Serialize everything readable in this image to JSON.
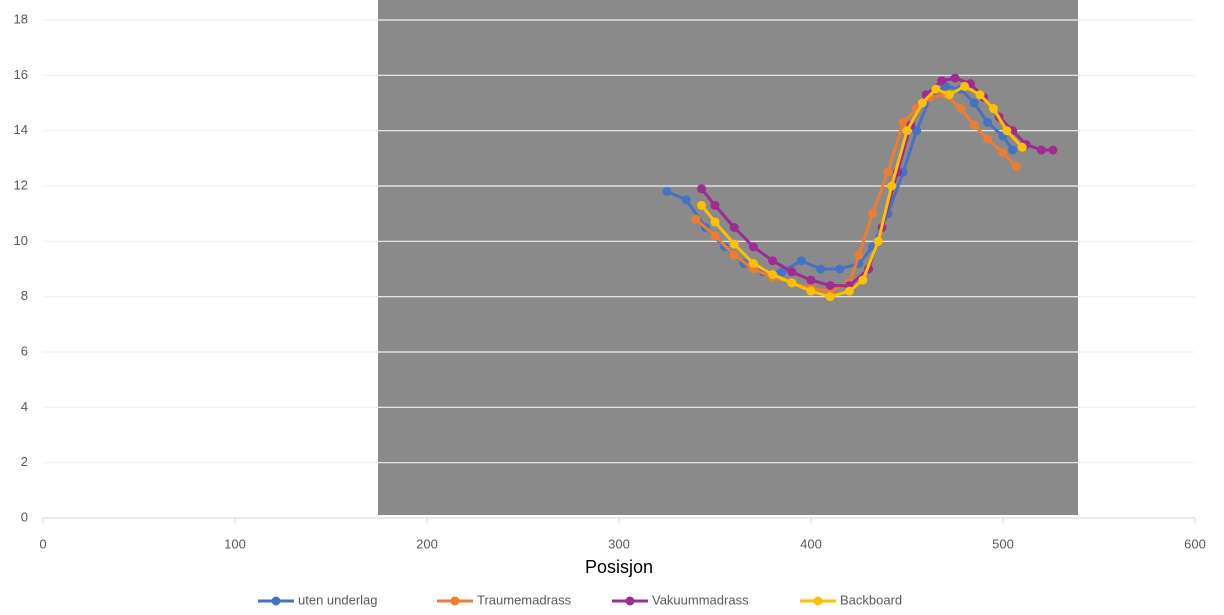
{
  "chart_data": {
    "type": "line",
    "xlabel": "Posisjon",
    "xlim": [
      0,
      600
    ],
    "xticks": [
      0,
      100,
      200,
      300,
      400,
      500,
      600
    ],
    "ylim": [
      0,
      18
    ],
    "yticks": [
      0,
      2,
      4,
      6,
      8,
      10,
      12,
      14,
      16,
      18
    ],
    "grid": true,
    "legend": "bottom",
    "series": [
      {
        "name": "uten underlag",
        "color": "#4472c4",
        "x": [
          325,
          335,
          345,
          355,
          365,
          375,
          385,
          395,
          405,
          415,
          425,
          432,
          440,
          448,
          455,
          462,
          470,
          478,
          485,
          492,
          500,
          505
        ],
        "values": [
          11.8,
          11.5,
          10.5,
          9.8,
          9.2,
          8.9,
          8.9,
          9.3,
          9.0,
          9.0,
          9.2,
          9.8,
          11.0,
          12.5,
          14.0,
          15.2,
          15.6,
          15.5,
          15.0,
          14.3,
          13.8,
          13.3
        ]
      },
      {
        "name": "Traumemadrass",
        "color": "#ed7d31",
        "x": [
          340,
          350,
          360,
          370,
          380,
          390,
          400,
          410,
          420,
          425,
          432,
          440,
          448,
          455,
          462,
          470,
          478,
          485,
          492,
          500,
          507
        ],
        "values": [
          10.8,
          10.2,
          9.5,
          9.0,
          8.7,
          8.5,
          8.3,
          8.2,
          8.5,
          9.5,
          11.0,
          12.5,
          14.3,
          14.8,
          15.2,
          15.3,
          14.8,
          14.2,
          13.7,
          13.2,
          12.7
        ]
      },
      {
        "name": "Vakuummadrass",
        "color": "#a02b93",
        "x": [
          343,
          350,
          360,
          370,
          380,
          390,
          400,
          410,
          420,
          430,
          437,
          445,
          452,
          460,
          468,
          475,
          483,
          490,
          498,
          505,
          512,
          520,
          526
        ],
        "values": [
          11.9,
          11.3,
          10.5,
          9.8,
          9.3,
          8.9,
          8.6,
          8.4,
          8.4,
          9.0,
          10.5,
          12.5,
          14.2,
          15.3,
          15.8,
          15.9,
          15.7,
          15.2,
          14.5,
          14.0,
          13.5,
          13.3,
          13.3
        ]
      },
      {
        "name": "Backboard",
        "color": "#ffc000",
        "x": [
          343,
          350,
          360,
          370,
          380,
          390,
          400,
          410,
          420,
          427,
          435,
          442,
          450,
          458,
          465,
          472,
          480,
          488,
          495,
          502,
          510
        ],
        "values": [
          11.3,
          10.7,
          9.9,
          9.2,
          8.8,
          8.5,
          8.2,
          8.0,
          8.2,
          8.6,
          10.0,
          12.0,
          14.0,
          15.0,
          15.5,
          15.3,
          15.6,
          15.3,
          14.8,
          14.0,
          13.4
        ]
      }
    ]
  }
}
